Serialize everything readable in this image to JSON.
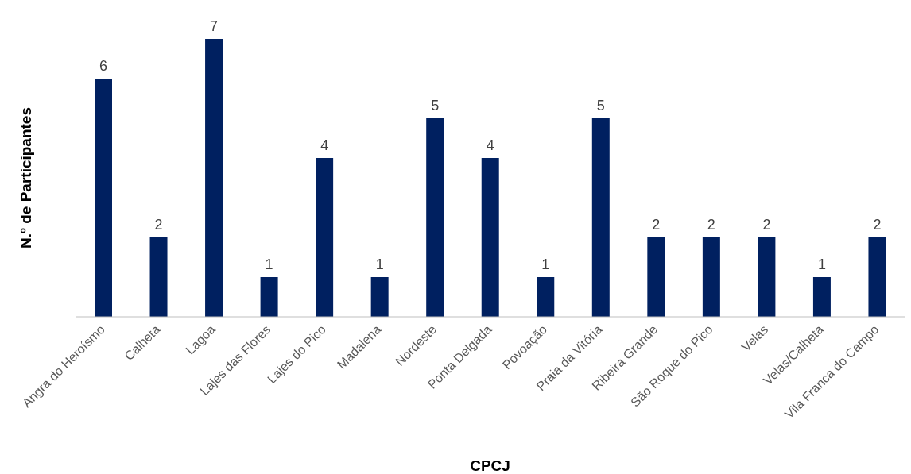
{
  "chart_data": {
    "type": "bar",
    "xlabel": "CPCJ",
    "ylabel": "N.º de Participantes",
    "categories": [
      "Angra do Heroísmo",
      "Calheta",
      "Lagoa",
      "Lajes das Flores",
      "Lajes do Pico",
      "Madalena",
      "Nordeste",
      "Ponta Delgada",
      "Povoação",
      "Praia da Vitória",
      "Ribeira Grande",
      "São Roque do Pico",
      "Velas",
      "Velas/Calheta",
      "Vila Franca do Campo"
    ],
    "values": [
      6,
      2,
      7,
      1,
      4,
      1,
      5,
      4,
      1,
      5,
      2,
      2,
      2,
      1,
      2
    ],
    "color": "#002060",
    "data_labels": true,
    "grid": false,
    "legend": false
  }
}
